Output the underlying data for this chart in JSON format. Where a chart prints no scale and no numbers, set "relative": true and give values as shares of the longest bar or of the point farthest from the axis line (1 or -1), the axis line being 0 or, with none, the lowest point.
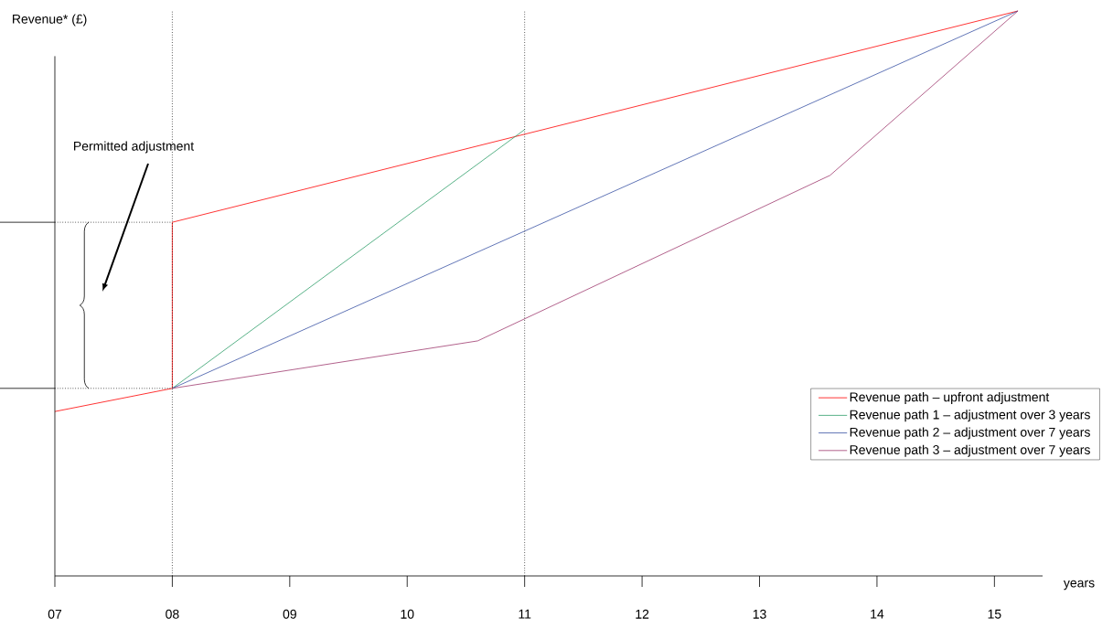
{
  "chart_data": {
    "type": "line",
    "relative": true,
    "ylabel": "Revenue* (£)",
    "xlabel": "years",
    "xlim": [
      7,
      15.41
    ],
    "xticks": [
      {
        "value": 7,
        "label": "07"
      },
      {
        "value": 8,
        "label": "08"
      },
      {
        "value": 9,
        "label": "09"
      },
      {
        "value": 10,
        "label": "10"
      },
      {
        "value": 11,
        "label": "11"
      },
      {
        "value": 12,
        "label": "12"
      },
      {
        "value": 13,
        "label": "13"
      },
      {
        "value": 14,
        "label": "14"
      },
      {
        "value": 15,
        "label": "15"
      }
    ],
    "series": [
      {
        "name": "Revenue path – upfront adjustment",
        "color": "#ff0000",
        "x": [
          7,
          8,
          8,
          15.2
        ],
        "values": [
          0.291,
          0.332,
          0.626,
          1
        ]
      },
      {
        "name": "Revenue path 1 – adjustment over 3 years",
        "color": "#2e9e6a",
        "x": [
          8,
          11
        ],
        "values": [
          0.332,
          0.79
        ]
      },
      {
        "name": "Revenue path 2 – adjustment over 7 years",
        "color": "#3a53a4",
        "x": [
          8,
          15.2
        ],
        "values": [
          0.332,
          1
        ]
      },
      {
        "name": "Revenue path 3 – adjustment over 7 years",
        "color": "#9e3a6e",
        "x": [
          8,
          10.6,
          13.6,
          15.2
        ],
        "values": [
          0.332,
          0.416,
          0.709,
          1
        ]
      }
    ],
    "ref_lines": [
      {
        "axis": "x",
        "value": 8,
        "line_style": "dotted"
      },
      {
        "axis": "x",
        "value": 11,
        "line_style": "dotted"
      },
      {
        "axis": "y",
        "value": 0.332,
        "line_style": "dotted"
      },
      {
        "axis": "y",
        "value": 0.626,
        "line_style": "dotted"
      }
    ],
    "annotations": [
      "Permitted adjustment"
    ],
    "legend": "bottom right",
    "marker": "none",
    "line_style": "solid",
    "grid": false
  }
}
